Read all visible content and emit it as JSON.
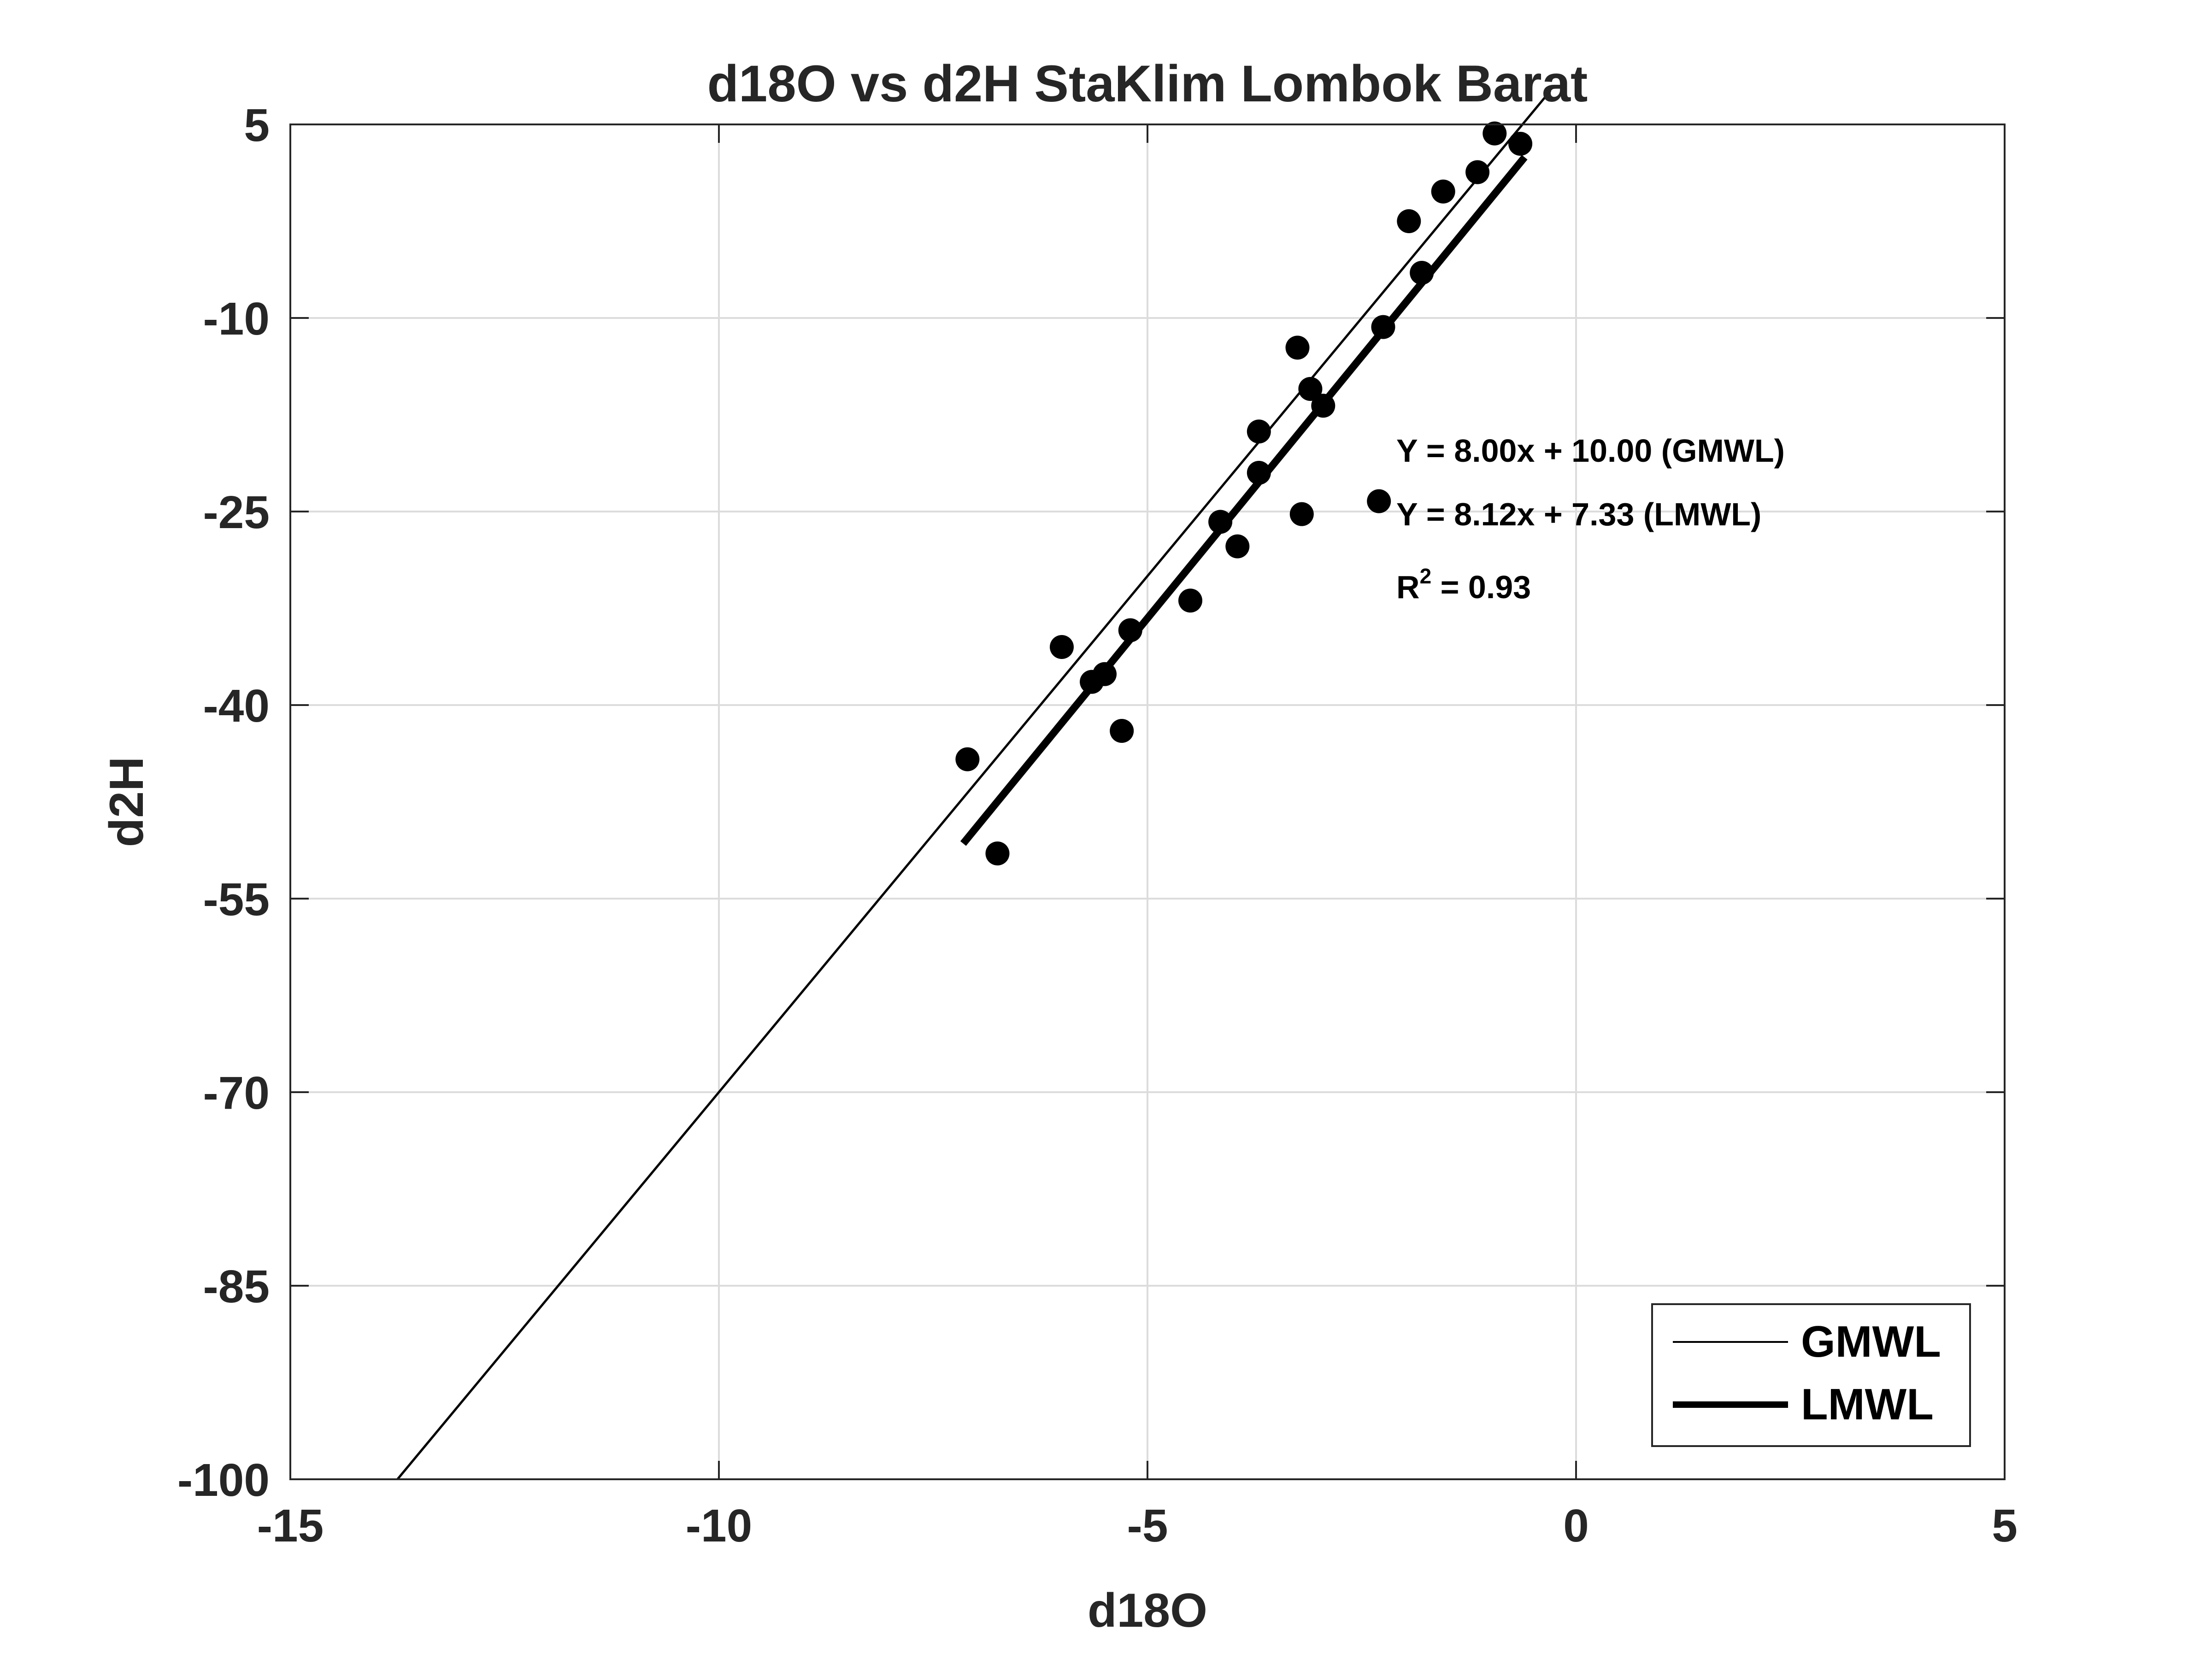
{
  "chart_data": {
    "type": "scatter",
    "title": "d18O vs d2H StaKlim Lombok Barat",
    "xlabel": "d18O",
    "ylabel": "d2H",
    "xlim": [
      -15,
      5
    ],
    "ylim": [
      -100,
      5
    ],
    "xticks": [
      -15,
      -10,
      -5,
      0,
      5
    ],
    "yticks": [
      -100,
      -85,
      -70,
      -55,
      -40,
      -25,
      -10,
      5
    ],
    "grid": true,
    "legend_position": "bottom-right",
    "points": [
      {
        "x": -7.1,
        "y": -44.2
      },
      {
        "x": -6.75,
        "y": -51.5
      },
      {
        "x": -6.0,
        "y": -35.5
      },
      {
        "x": -5.65,
        "y": -38.2
      },
      {
        "x": -5.5,
        "y": -37.6
      },
      {
        "x": -5.3,
        "y": -42.0
      },
      {
        "x": -5.2,
        "y": -34.2
      },
      {
        "x": -4.5,
        "y": -31.9
      },
      {
        "x": -4.15,
        "y": -25.8
      },
      {
        "x": -3.95,
        "y": -27.7
      },
      {
        "x": -3.7,
        "y": -18.8
      },
      {
        "x": -3.7,
        "y": -22.0
      },
      {
        "x": -3.25,
        "y": -12.3
      },
      {
        "x": -3.2,
        "y": -25.2
      },
      {
        "x": -3.1,
        "y": -15.5
      },
      {
        "x": -2.95,
        "y": -16.8
      },
      {
        "x": -2.3,
        "y": -24.2
      },
      {
        "x": -2.25,
        "y": -10.7
      },
      {
        "x": -1.95,
        "y": -2.5
      },
      {
        "x": -1.8,
        "y": -6.5
      },
      {
        "x": -1.55,
        "y": -0.2
      },
      {
        "x": -1.15,
        "y": 1.3
      },
      {
        "x": -0.95,
        "y": 4.3
      },
      {
        "x": -0.65,
        "y": 3.5
      }
    ],
    "lines": [
      {
        "name": "GMWL",
        "slope": 8.0,
        "intercept": 10.0,
        "x_range": [
          -13.75,
          -0.3
        ],
        "width": "thin"
      },
      {
        "name": "LMWL",
        "slope": 8.12,
        "intercept": 7.33,
        "x_range": [
          -7.15,
          -0.6
        ],
        "width": "thick"
      }
    ],
    "annotations": {
      "gmwl_eq": "Y = 8.00x + 10.00 (GMWL)",
      "lmwl_eq": "Y = 8.12x + 7.33 (LMWL)",
      "r2_base": "R",
      "r2_sup": "2",
      "r2_value": " = 0.93"
    },
    "legend": [
      {
        "label": "GMWL"
      },
      {
        "label": "LMWL"
      }
    ],
    "colors": {
      "marker": "#000000",
      "line": "#000000",
      "axis": "#262626",
      "grid": "#dcdcdc"
    }
  }
}
